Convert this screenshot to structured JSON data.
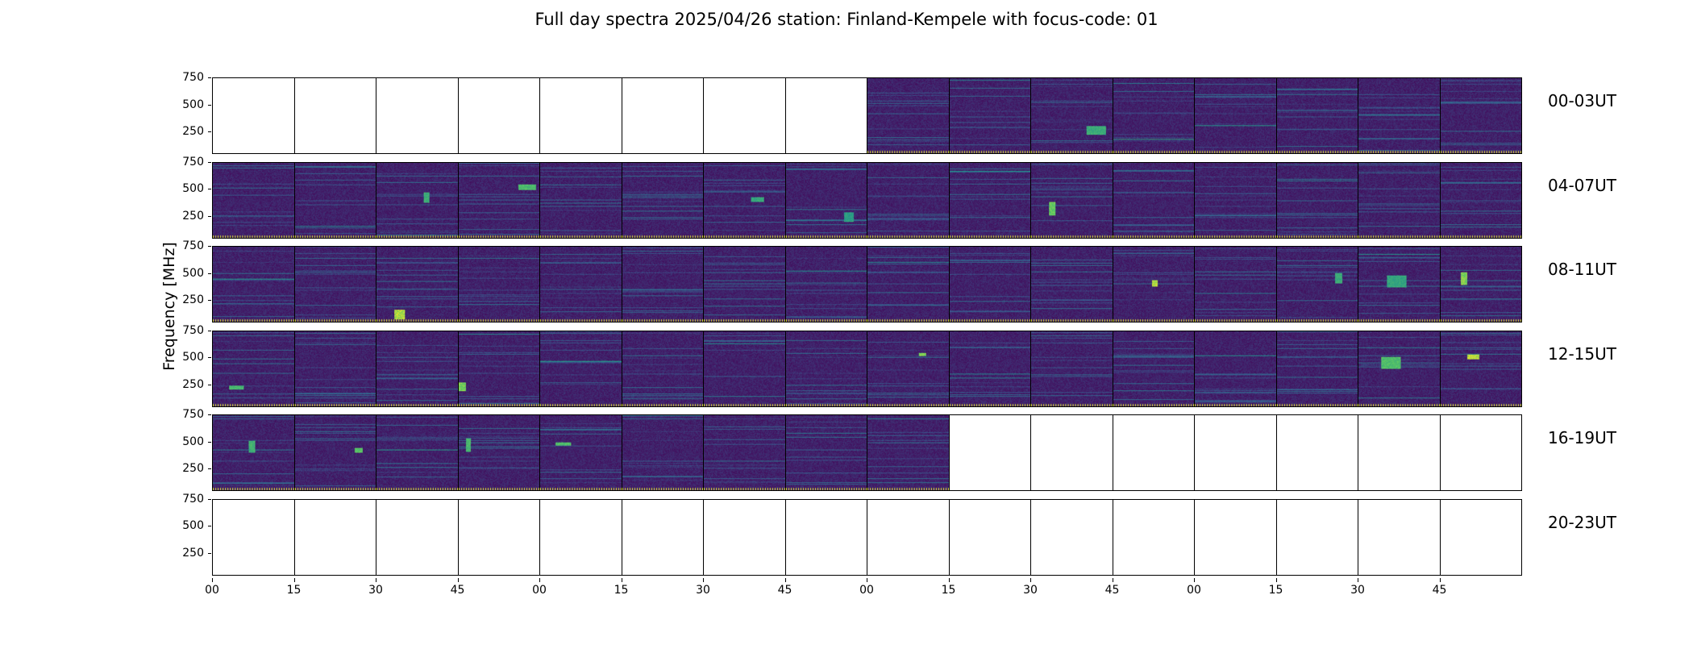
{
  "chart_data": {
    "type": "heatmap",
    "title": "Full day spectra 2025/04/26 station: Finland-Kempele with focus-code: 01",
    "ylabel": "Frequency [MHz]",
    "xlabel": "",
    "ylim": [
      45,
      750
    ],
    "y_ticks": [
      "750",
      "500",
      "250"
    ],
    "x_ticks": [
      "00",
      "15",
      "30",
      "45",
      "00",
      "15",
      "30",
      "45",
      "00",
      "15",
      "30",
      "45",
      "00",
      "15",
      "30",
      "45"
    ],
    "colormap": [
      "#440154",
      "#3b528b",
      "#21918c",
      "#5ec962",
      "#fde725"
    ],
    "rows": [
      {
        "label": "00-03UT",
        "available": [
          0,
          0,
          0,
          0,
          0,
          0,
          0,
          0,
          1,
          1,
          1,
          1,
          1,
          1,
          1,
          1
        ]
      },
      {
        "label": "04-07UT",
        "available": [
          1,
          1,
          1,
          1,
          1,
          1,
          1,
          1,
          1,
          1,
          1,
          1,
          1,
          1,
          1,
          1
        ]
      },
      {
        "label": "08-11UT",
        "available": [
          1,
          1,
          1,
          1,
          1,
          1,
          1,
          1,
          1,
          1,
          1,
          1,
          1,
          1,
          1,
          1
        ]
      },
      {
        "label": "12-15UT",
        "available": [
          1,
          1,
          1,
          1,
          1,
          1,
          1,
          1,
          1,
          1,
          1,
          1,
          1,
          1,
          1,
          1
        ]
      },
      {
        "label": "16-19UT",
        "available": [
          1,
          1,
          1,
          1,
          1,
          1,
          1,
          1,
          1,
          0,
          0,
          0,
          0,
          0,
          0,
          0
        ]
      },
      {
        "label": "20-23UT",
        "available": [
          0,
          0,
          0,
          0,
          0,
          0,
          0,
          0,
          0,
          0,
          0,
          0,
          0,
          0,
          0,
          0
        ]
      }
    ]
  }
}
